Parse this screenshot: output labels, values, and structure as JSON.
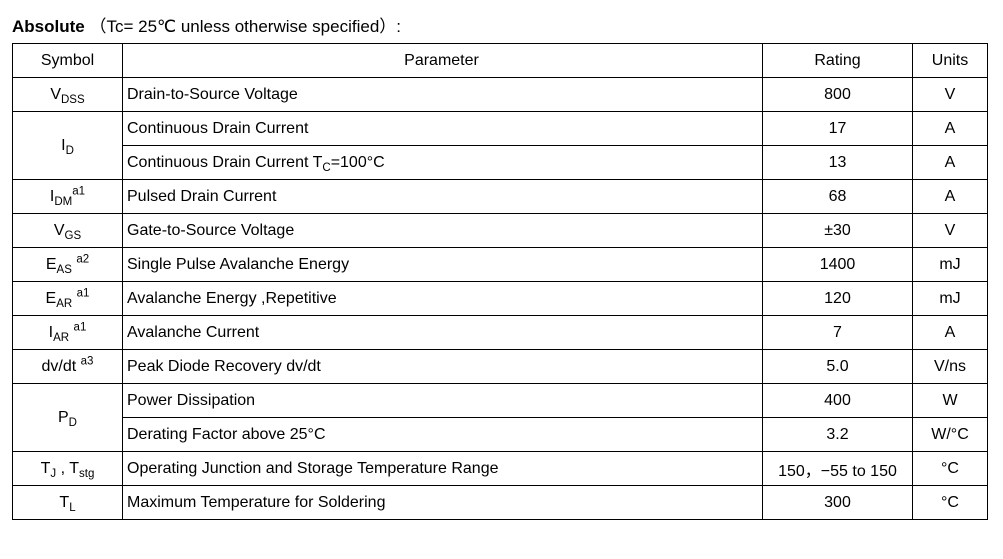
{
  "title": {
    "bold": "Absolute",
    "cond": "（Tc= 25℃  unless otherwise specified）:"
  },
  "headers": {
    "symbol": "Symbol",
    "parameter": "Parameter",
    "rating": "Rating",
    "units": "Units"
  },
  "rows": [
    {
      "symbol_html": "V<sub>DSS</sub>",
      "rowspan": 1,
      "param": "Drain-to-Source Voltage",
      "rating": "800",
      "units": "V"
    },
    {
      "symbol_html": "I<sub>D</sub>",
      "rowspan": 2,
      "param": "Continuous Drain Current",
      "rating": "17",
      "units": "A"
    },
    {
      "symbol_html": "",
      "skip": true,
      "param_html": "Continuous Drain Current T<sub>C</sub>=100°C",
      "rating": "13",
      "units": "A"
    },
    {
      "symbol_html": "I<sub>DM</sub><sup>a1</sup>",
      "rowspan": 1,
      "param": "Pulsed Drain Current",
      "rating": "68",
      "units": "A"
    },
    {
      "symbol_html": "V<sub>GS</sub>",
      "rowspan": 1,
      "param": "Gate-to-Source Voltage",
      "rating": "±30",
      "units": "V"
    },
    {
      "symbol_html": "E<sub>AS</sub> <sup>a2</sup>",
      "rowspan": 1,
      "param": "Single Pulse Avalanche Energy",
      "rating": "1400",
      "units": "mJ"
    },
    {
      "symbol_html": "E<sub>AR</sub> <sup>a1</sup>",
      "rowspan": 1,
      "param": "Avalanche Energy ,Repetitive",
      "rating": "120",
      "units": "mJ"
    },
    {
      "symbol_html": "I<sub>AR</sub> <sup>a1</sup>",
      "rowspan": 1,
      "param": "Avalanche Current",
      "rating": "7",
      "units": "A"
    },
    {
      "symbol_html": "dv/dt <sup>a3</sup>",
      "rowspan": 1,
      "param": "Peak Diode Recovery dv/dt",
      "rating": "5.0",
      "units": "V/ns"
    },
    {
      "symbol_html": "P<sub>D</sub>",
      "rowspan": 2,
      "param": "Power Dissipation",
      "rating": "400",
      "units": "W"
    },
    {
      "symbol_html": "",
      "skip": true,
      "param": "Derating Factor above 25°C",
      "rating": "3.2",
      "units": "W/°C"
    },
    {
      "symbol_html": "T<sub>J</sub> , T<sub>stg</sub>",
      "rowspan": 1,
      "param": "Operating Junction and Storage Temperature Range",
      "rating": "150，−55 to 150",
      "units": "°C"
    },
    {
      "symbol_html": "T<sub>L</sub>",
      "rowspan": 1,
      "param": "Maximum Temperature for Soldering",
      "rating": "300",
      "units": "°C"
    }
  ]
}
